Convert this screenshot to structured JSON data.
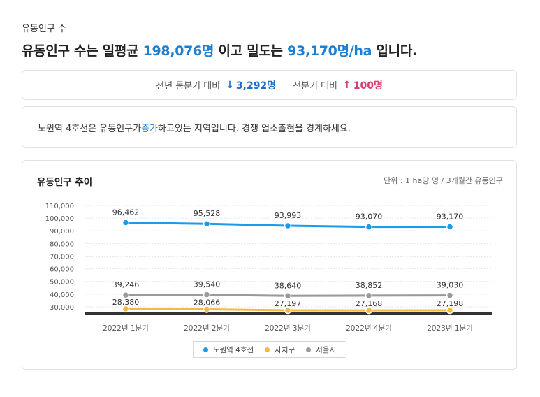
{
  "section_label": "유동인구 수",
  "headline": {
    "prefix": "유동인구 수는 일평균 ",
    "daily_value": "198,076명",
    "middle": " 이고 밀도는 ",
    "density_value": "93,170명/ha",
    "suffix": " 입니다."
  },
  "comparison": {
    "year_label": "전년 동분기 대비",
    "year_value": "3,292명",
    "year_direction": "down",
    "quarter_label": "전분기 대비",
    "quarter_value": "100명",
    "quarter_direction": "up"
  },
  "notice": {
    "before": "노원역 4호선은 유동인구가 ",
    "accent": "증가",
    "after": "하고있는 지역입니다. 경쟁 업소출현을 경계하세요."
  },
  "colors": {
    "accent_blue": "#1a7fd6",
    "down_blue": "#1a6fc4",
    "up_pink": "#d83b6e"
  },
  "chart_data": {
    "type": "line",
    "title": "유동인구 추이",
    "unit_note": "단위 : 1 ha당 명 / 3개월간 유동인구",
    "categories": [
      "2022년 1분기",
      "2022년 2분기",
      "2022년 3분기",
      "2022년 4분기",
      "2023년 1분기"
    ],
    "yticks": [
      30000,
      40000,
      50000,
      60000,
      70000,
      80000,
      90000,
      100000,
      110000
    ],
    "ylim": [
      25000,
      110000
    ],
    "grid": true,
    "legend_position": "bottom",
    "series": [
      {
        "name": "노원역 4호선",
        "color": "#1e9be8",
        "values": [
          96462,
          95528,
          93993,
          93070,
          93170
        ]
      },
      {
        "name": "자치구",
        "color": "#f5b942",
        "values": [
          28380,
          28066,
          27197,
          27168,
          27198
        ]
      },
      {
        "name": "서울시",
        "color": "#9a9a9a",
        "values": [
          39246,
          39540,
          38640,
          38852,
          39030
        ]
      }
    ]
  }
}
